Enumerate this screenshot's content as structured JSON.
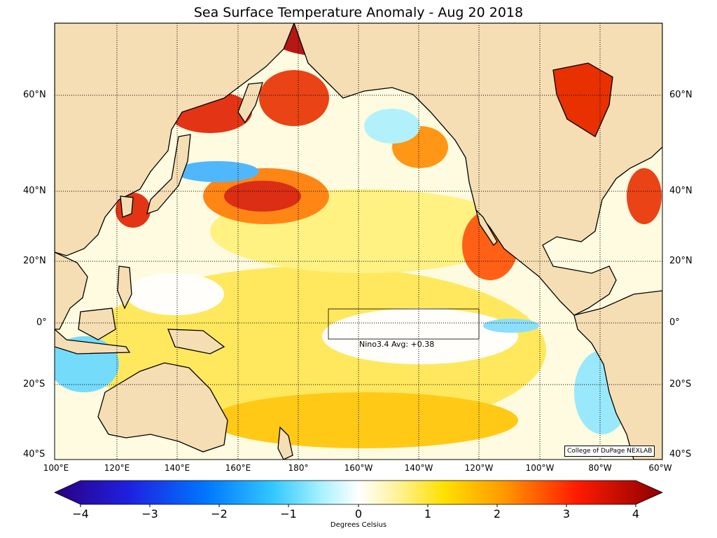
{
  "title": "Sea Surface Temperature Anomaly - Aug 20 2018",
  "lat_labels": [
    "60°N",
    "40°N",
    "20°N",
    "0°",
    "20°S",
    "40°S"
  ],
  "lon_labels": [
    "100°E",
    "120°E",
    "140°E",
    "160°E",
    "180°",
    "160°W",
    "140°W",
    "120°W",
    "100°W",
    "80°W",
    "60°W"
  ],
  "nino_label": "Nino3.4 Avg: +0.38",
  "credit": "College of DuPage NEXLAB",
  "colorbar": {
    "ticks": [
      "−4",
      "−3",
      "−2",
      "−1",
      "0",
      "1",
      "2",
      "3",
      "4"
    ],
    "label": "Degrees Celsius",
    "range": [
      -4,
      4
    ]
  },
  "colors": {
    "land": "#f5deb3",
    "ocean_neutral": "#ffffff",
    "warm": "#ffd400",
    "hot": "#e01000",
    "cool": "#7fe8ff"
  }
}
